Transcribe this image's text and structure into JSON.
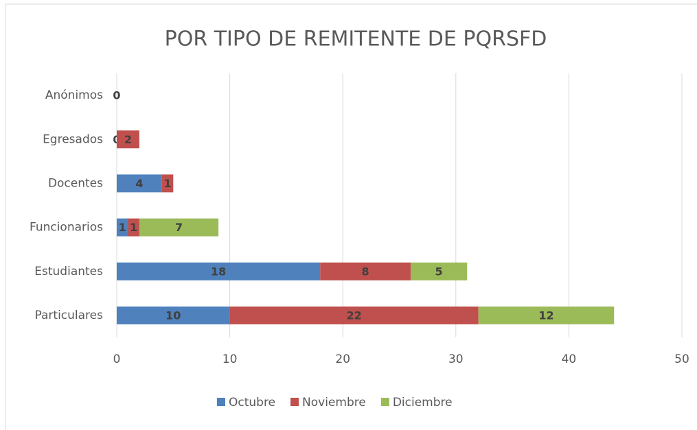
{
  "chart_data": {
    "type": "bar",
    "orientation": "horizontal",
    "stacked": true,
    "title": "POR TIPO DE REMITENTE DE PQRSFD",
    "categories": [
      "Anónimos",
      "Egresados",
      "Docentes",
      "Funcionarios",
      "Estudiantes",
      "Particulares"
    ],
    "series": [
      {
        "name": "Octubre",
        "color": "#4f81bd",
        "values": [
          0,
          0,
          4,
          1,
          18,
          10
        ]
      },
      {
        "name": "Noviembre",
        "color": "#c0504d",
        "values": [
          null,
          2,
          1,
          1,
          8,
          22
        ]
      },
      {
        "name": "Diciembre",
        "color": "#9bbb59",
        "values": [
          null,
          null,
          null,
          7,
          5,
          12
        ]
      }
    ],
    "xlim": [
      0,
      50
    ],
    "xticks": [
      0,
      10,
      20,
      30,
      40,
      50
    ],
    "grid": true,
    "legend": "bottom"
  }
}
